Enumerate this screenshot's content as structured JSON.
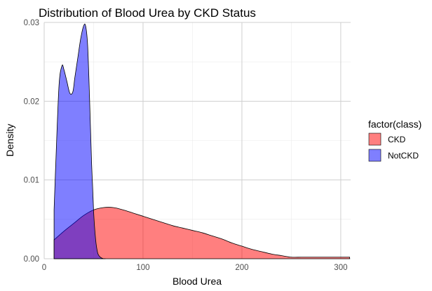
{
  "chart_data": {
    "type": "area",
    "title": "Distribution of Blood Urea by CKD Status",
    "xlabel": "Blood Urea",
    "ylabel": "Density",
    "xlim": [
      0,
      310
    ],
    "ylim": [
      0,
      0.03
    ],
    "x_ticks": [
      0,
      100,
      200,
      300
    ],
    "x_tick_labels": [
      "0",
      "100",
      "200",
      "300"
    ],
    "y_ticks": [
      0,
      0.01,
      0.02,
      0.03
    ],
    "y_tick_labels": [
      "0.00",
      "0.01",
      "0.02",
      "0.03"
    ],
    "grid": true,
    "legend": {
      "title": "factor(class)",
      "placement": "right",
      "entries": [
        "CKD",
        "NotCKD"
      ]
    },
    "series": [
      {
        "name": "CKD",
        "color": "#FF0000",
        "opacity": 0.5,
        "x": [
          10,
          20,
          30,
          40,
          50,
          60,
          70,
          80,
          90,
          100,
          110,
          120,
          130,
          140,
          150,
          160,
          170,
          180,
          190,
          200,
          210,
          220,
          230,
          240,
          250,
          260,
          270,
          280,
          290,
          300,
          309
        ],
        "y": [
          0.0024,
          0.0035,
          0.0045,
          0.0055,
          0.0062,
          0.0065,
          0.0065,
          0.0062,
          0.0058,
          0.0054,
          0.005,
          0.0046,
          0.0042,
          0.0039,
          0.0036,
          0.0033,
          0.0029,
          0.0025,
          0.002,
          0.0016,
          0.0012,
          0.0009,
          0.0006,
          0.0004,
          0.0002,
          0.0002,
          0.0002,
          0.0002,
          0.0002,
          0.0002,
          0.0002
        ]
      },
      {
        "name": "NotCKD",
        "color": "#0000FF",
        "opacity": 0.5,
        "x": [
          10,
          12,
          15,
          18,
          20,
          23,
          26,
          29,
          31,
          34,
          37,
          40,
          42,
          44,
          46,
          48,
          50,
          52,
          54,
          56,
          58,
          60,
          62
        ],
        "y": [
          0.0062,
          0.013,
          0.022,
          0.0245,
          0.024,
          0.0225,
          0.021,
          0.0212,
          0.023,
          0.0255,
          0.028,
          0.0296,
          0.0295,
          0.027,
          0.02,
          0.012,
          0.006,
          0.0025,
          0.0008,
          0.0003,
          0.0001,
          0.0,
          0.0
        ]
      }
    ]
  }
}
